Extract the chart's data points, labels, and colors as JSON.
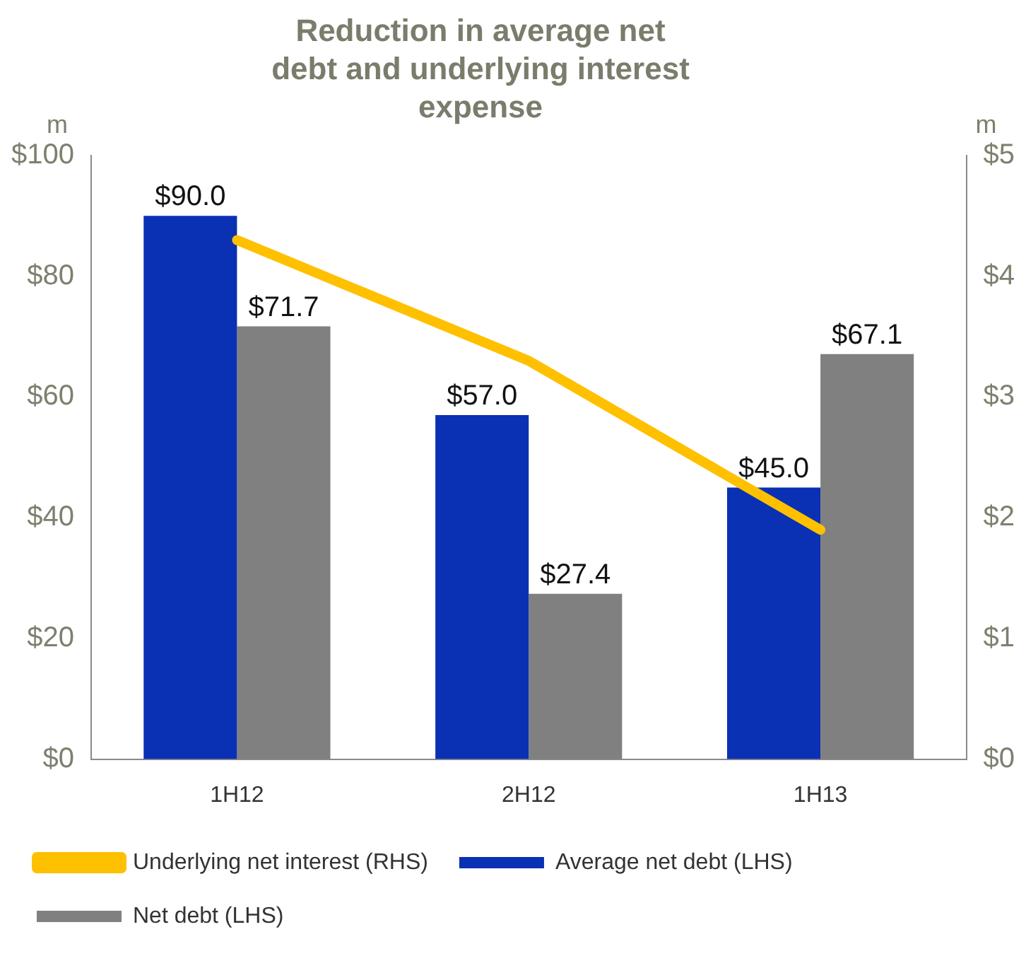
{
  "chart_data": {
    "type": "bar",
    "title": "Reduction in average net debt and underlying interest expense",
    "ylabel": "m",
    "y2label": "m",
    "categories": [
      "1H12",
      "2H12",
      "1H13"
    ],
    "series": [
      {
        "name": "Average net debt (LHS)",
        "color": "#0a30b4",
        "values": [
          90.0,
          57.0,
          45.0
        ],
        "value_labels": [
          "$90.0",
          "$57.0",
          "$45.0"
        ]
      },
      {
        "name": "Net debt (LHS)",
        "color": "#808080",
        "values": [
          71.7,
          27.4,
          67.1
        ],
        "value_labels": [
          "$71.7",
          "$27.4",
          "$67.1"
        ]
      },
      {
        "name": "Underlying net interest (RHS)",
        "type": "line",
        "axis": "y2",
        "color": "#ffc000",
        "values": [
          4.3,
          3.3,
          1.9
        ]
      }
    ],
    "ylim": [
      0,
      100
    ],
    "yticks": [
      {
        "value": 0,
        "label": "$0"
      },
      {
        "value": 20,
        "label": "$20"
      },
      {
        "value": 40,
        "label": "$40"
      },
      {
        "value": 60,
        "label": "$60"
      },
      {
        "value": 80,
        "label": "$80"
      },
      {
        "value": 100,
        "label": "$100"
      }
    ],
    "y2lim": [
      0,
      5
    ],
    "y2ticks": [
      {
        "value": 0,
        "label": "$0"
      },
      {
        "value": 1,
        "label": "$1"
      },
      {
        "value": 2,
        "label": "$2"
      },
      {
        "value": 3,
        "label": "$3"
      },
      {
        "value": 4,
        "label": "$4"
      },
      {
        "value": 5,
        "label": "$5"
      }
    ],
    "grid": false,
    "legend": "bottom",
    "marker": "none"
  }
}
